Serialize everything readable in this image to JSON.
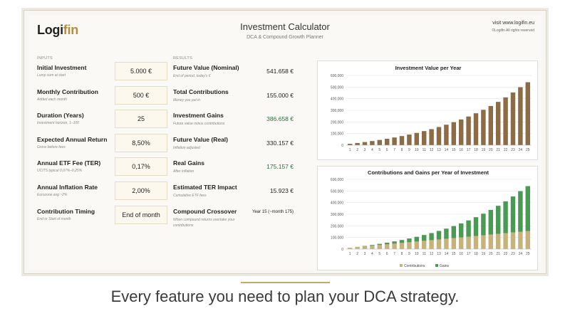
{
  "brand": {
    "logo_main": "Logi",
    "logo_accent": "fin"
  },
  "header": {
    "title": "Investment Calculator",
    "subtitle": "DCA & Compound Growth Planner",
    "visit": "visit www.logifin.eu",
    "rights": "©Logifin All rights reserved"
  },
  "inputs": {
    "section_label": "INPUTS",
    "rows": [
      {
        "label": "Initial Investment",
        "help": "Lump sum at start",
        "value": "5.000 €"
      },
      {
        "label": "Monthly Contribution",
        "help": "Added each month",
        "value": "500 €"
      },
      {
        "label": "Duration (Years)",
        "help": "Investment horizon, 1–100",
        "value": "25"
      },
      {
        "label": "Expected Annual Return",
        "help": "Gross before fees",
        "value": "8,50%"
      },
      {
        "label": "Annual ETF Fee (TER)",
        "help": "UCITS typical 0,07%–0,25%",
        "value": "0,17%"
      },
      {
        "label": "Annual Inflation Rate",
        "help": "Eurozone avg ~2%",
        "value": "2,00%"
      },
      {
        "label": "Contribution Timing",
        "help": "End or Start of month",
        "value": "End of month"
      }
    ]
  },
  "results": {
    "section_label": "RESULTS",
    "rows": [
      {
        "label": "Future Value (Nominal)",
        "help": "End of period, today's €",
        "value": "541.658 €"
      },
      {
        "label": "Total Contributions",
        "help": "Money you put in",
        "value": "155.000 €"
      },
      {
        "label": "Investment Gains",
        "help": "Future value minus contributions",
        "value": "386.658 €"
      },
      {
        "label": "Future Value (Real)",
        "help": "Inflation adjusted",
        "value": "330.157 €"
      },
      {
        "label": "Real Gains",
        "help": "After inflation",
        "value": "175.157 €"
      },
      {
        "label": "Estimated TER Impact",
        "help": "Cumulative ETF fees",
        "value": "15.923 €"
      },
      {
        "label": "Compound Crossover",
        "help": "When compound returns overtake your",
        "help2": "contributions",
        "value": "Year 15 (~month 175)"
      }
    ]
  },
  "colors": {
    "brown": "#8c6b45",
    "tan": "#c9b27a",
    "green": "#4a9a55",
    "accent": "#b08d46",
    "gain_text": "#2d6b3d"
  },
  "chart_data": [
    {
      "type": "bar",
      "title": "Investment Value per Year",
      "categories": [
        "1",
        "2",
        "3",
        "4",
        "5",
        "6",
        "7",
        "8",
        "9",
        "10",
        "11",
        "12",
        "13",
        "14",
        "15",
        "16",
        "17",
        "18",
        "19",
        "20",
        "21",
        "22",
        "23",
        "24",
        "25"
      ],
      "values": [
        11700,
        19000,
        26900,
        35600,
        45000,
        55200,
        66300,
        78400,
        91500,
        105800,
        121300,
        138100,
        156400,
        176200,
        197800,
        221300,
        246800,
        274500,
        304600,
        337200,
        372700,
        411200,
        453000,
        498400,
        541658
      ],
      "ylim": [
        0,
        600000
      ],
      "yticks": [
        "0",
        "100,000",
        "200,000",
        "300,000",
        "400,000",
        "500,000",
        "600,000"
      ]
    },
    {
      "type": "bar",
      "stacked": true,
      "title": "Contributions and Gains per Year of Investment",
      "categories": [
        "1",
        "2",
        "3",
        "4",
        "5",
        "6",
        "7",
        "8",
        "9",
        "10",
        "11",
        "12",
        "13",
        "14",
        "15",
        "16",
        "17",
        "18",
        "19",
        "20",
        "21",
        "22",
        "23",
        "24",
        "25"
      ],
      "series": [
        {
          "name": "Contributions",
          "values": [
            11000,
            17000,
            23000,
            29000,
            35000,
            41000,
            47000,
            53000,
            59000,
            65000,
            71000,
            77000,
            83000,
            89000,
            95000,
            101000,
            107000,
            113000,
            119000,
            125000,
            131000,
            137000,
            143000,
            149000,
            155000
          ]
        },
        {
          "name": "Gains",
          "values": [
            700,
            2000,
            3900,
            6600,
            10000,
            14200,
            19300,
            25400,
            32500,
            40800,
            50300,
            61100,
            73400,
            87200,
            102800,
            120300,
            139800,
            161500,
            185600,
            212200,
            241700,
            274200,
            310000,
            349400,
            386658
          ]
        }
      ],
      "ylim": [
        0,
        600000
      ],
      "yticks": [
        "0",
        "100,000",
        "200,000",
        "300,000",
        "400,000",
        "500,000",
        "600,000"
      ],
      "legend": "bottom"
    }
  ],
  "tagline": "Every feature you need to plan your DCA strategy."
}
